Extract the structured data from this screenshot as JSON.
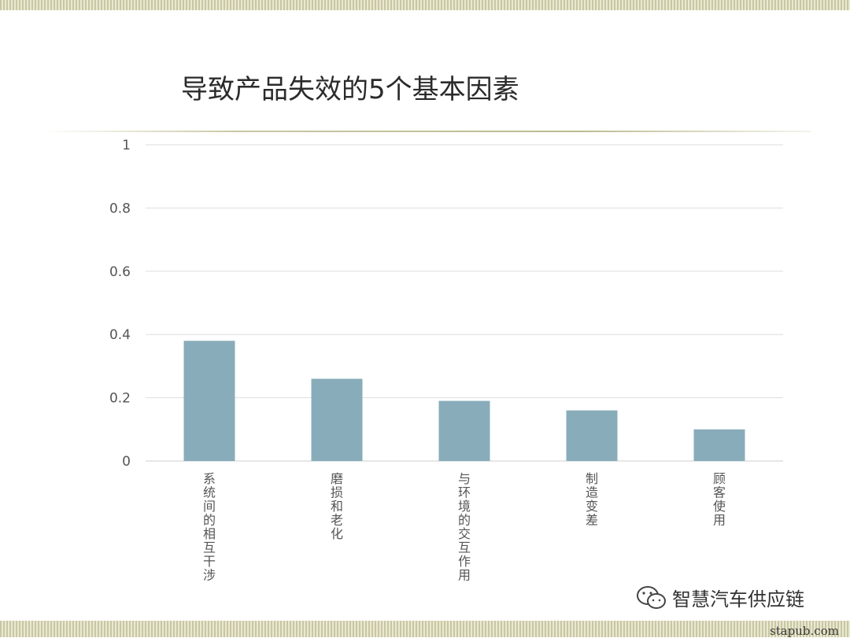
{
  "slide": {
    "title": "导致产品失效的5个基本因素"
  },
  "chart_data": {
    "type": "bar",
    "categories": [
      "系统间的相互干涉",
      "磨损和老化",
      "与环境的交互作用",
      "制造变差",
      "顾客使用"
    ],
    "values": [
      0.38,
      0.26,
      0.19,
      0.16,
      0.1
    ],
    "ylim": [
      0,
      1
    ],
    "yticks": [
      "0",
      "0.2",
      "0.4",
      "0.6",
      "0.8",
      "1"
    ],
    "grid": true,
    "bar_color": "#88acba",
    "title": "",
    "xlabel": "",
    "ylabel": ""
  },
  "watermark": {
    "icon": "wechat-icon",
    "text": "智慧汽车供应链"
  },
  "site": "stapub.com"
}
